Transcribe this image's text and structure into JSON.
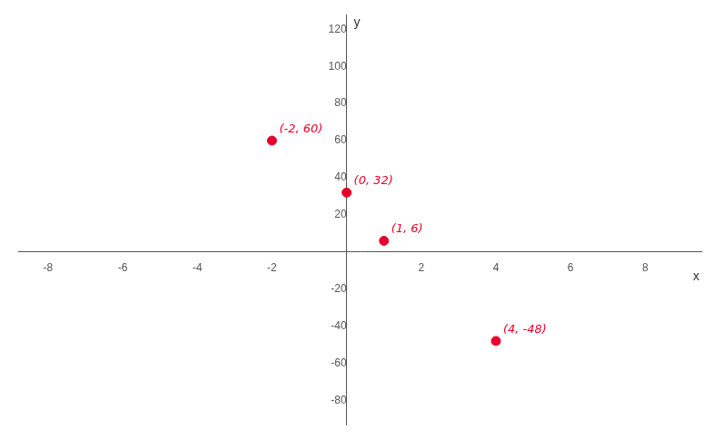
{
  "chart_data": {
    "type": "scatter",
    "xlabel": "x",
    "ylabel": "y",
    "x": [
      -2,
      0,
      1,
      4
    ],
    "values": [
      60,
      32,
      6,
      -48
    ],
    "value_labels": [
      "(-2, 60)",
      "(0, 32)",
      "(1, 6)",
      "(4, -48)"
    ],
    "data_labels": true,
    "color": "#e8002a",
    "xlim": [
      -8.8,
      9.5
    ],
    "ylim": [
      -93,
      128
    ],
    "xticks": [
      -8,
      -6,
      -4,
      -2,
      2,
      4,
      6,
      8
    ],
    "yticks": [
      -80,
      -60,
      -40,
      -20,
      20,
      40,
      60,
      80,
      100,
      120
    ],
    "grid": false
  }
}
